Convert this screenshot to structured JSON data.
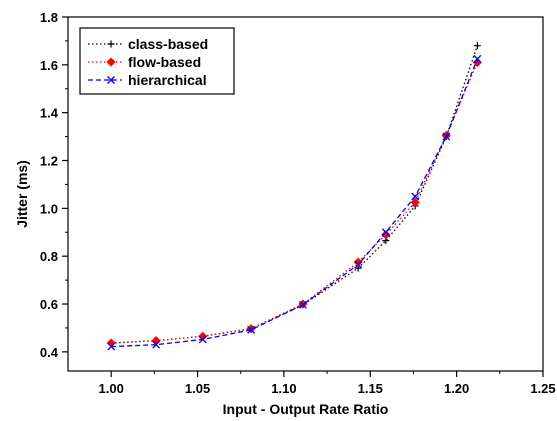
{
  "chart_data": {
    "type": "line",
    "title": "",
    "xlabel": "Input - Output Rate Ratio",
    "ylabel": "Jitter (ms)",
    "xlim": [
      0.975,
      1.25
    ],
    "ylim": [
      0.32,
      1.8
    ],
    "x_ticks": [
      1.0,
      1.05,
      1.1,
      1.15,
      1.2,
      1.25
    ],
    "x_tick_labels": [
      "1.00",
      "1.05",
      "1.10",
      "1.15",
      "1.20",
      "1.25"
    ],
    "y_ticks": [
      0.4,
      0.6,
      0.8,
      1.0,
      1.2,
      1.4,
      1.6,
      1.8
    ],
    "y_tick_labels": [
      "0.4",
      "0.6",
      "0.8",
      "1.0",
      "1.2",
      "1.4",
      "1.6",
      "1.8"
    ],
    "grid": false,
    "legend_position": "top-left",
    "series": [
      {
        "name": "class-based",
        "color": "#000000",
        "marker": "plus",
        "line_style": "dotted",
        "x": [
          1.0,
          1.026,
          1.053,
          1.081,
          1.111,
          1.143,
          1.159,
          1.176,
          1.194,
          1.212
        ],
        "y": [
          0.437,
          0.447,
          0.465,
          0.497,
          0.597,
          0.75,
          0.865,
          1.01,
          1.3,
          1.68
        ]
      },
      {
        "name": "flow-based",
        "color": "#ff0000",
        "marker": "diamond",
        "line_style": "dotted",
        "x": [
          1.0,
          1.026,
          1.053,
          1.081,
          1.111,
          1.143,
          1.159,
          1.176,
          1.194,
          1.212
        ],
        "y": [
          0.437,
          0.447,
          0.465,
          0.497,
          0.6,
          0.775,
          0.89,
          1.025,
          1.305,
          1.61
        ]
      },
      {
        "name": "hierarchical",
        "color": "#0000ff",
        "marker": "x",
        "line_style": "dashed",
        "x": [
          1.0,
          1.026,
          1.053,
          1.081,
          1.111,
          1.143,
          1.159,
          1.176,
          1.194,
          1.212
        ],
        "y": [
          0.422,
          0.43,
          0.452,
          0.492,
          0.597,
          0.765,
          0.9,
          1.05,
          1.3,
          1.625
        ]
      }
    ]
  }
}
